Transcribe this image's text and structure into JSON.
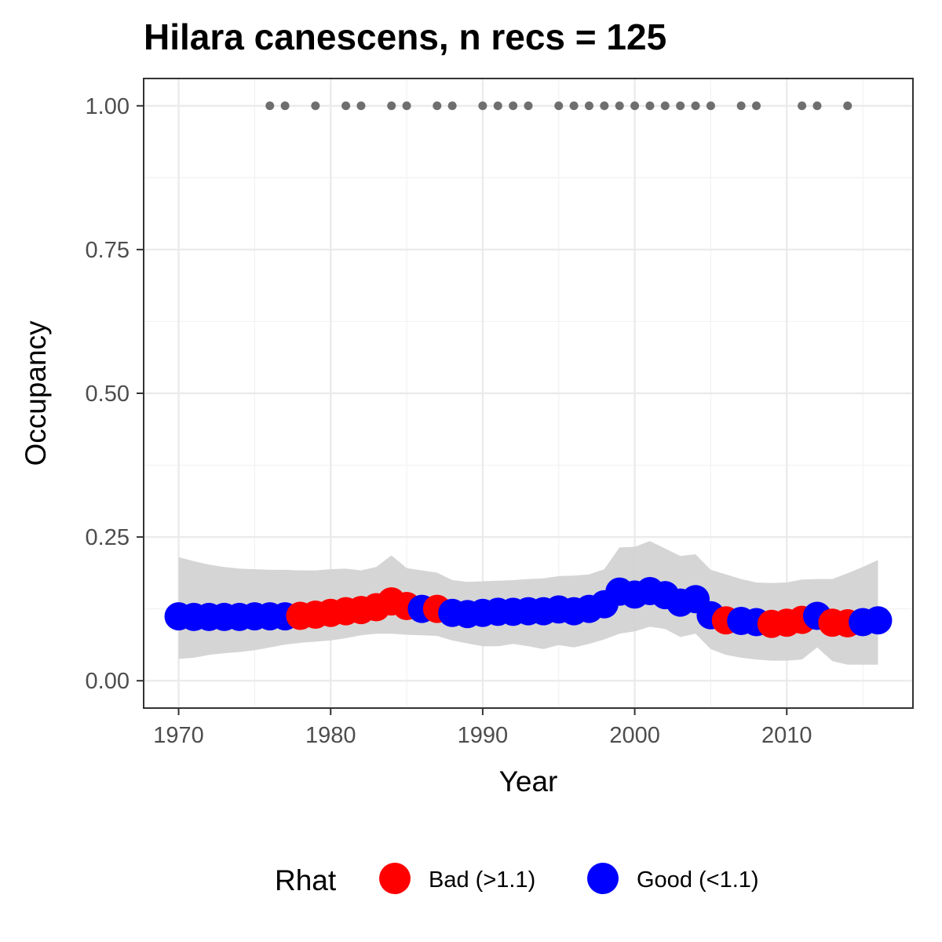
{
  "chart_data": {
    "type": "line",
    "title": "Hilara canescens, n recs = 125",
    "xlabel": "Year",
    "ylabel": "Occupancy",
    "xlim": [
      1967.7,
      2018.3
    ],
    "ylim": [
      -0.0475,
      1.0475
    ],
    "x_ticks": [
      1970,
      1980,
      1990,
      2000,
      2010
    ],
    "x_tick_labels": [
      "1970",
      "1980",
      "1990",
      "2000",
      "2010"
    ],
    "y_ticks": [
      0,
      0.25,
      0.5,
      0.75,
      1.0
    ],
    "y_tick_labels": [
      "0.00",
      "0.25",
      "0.50",
      "0.75",
      "1.00"
    ],
    "grid": true,
    "legend": {
      "title": "Rhat",
      "position": "bottom",
      "items": [
        {
          "label": "Bad (>1.1)",
          "color": "#ff0000"
        },
        {
          "label": "Good (<1.1)",
          "color": "#0000ff"
        }
      ]
    },
    "colors": {
      "bad": "#ff0000",
      "good": "#0000ff",
      "ribbon": "#d3d3d3",
      "record": "#6e6e6e"
    },
    "years": [
      1970,
      1971,
      1972,
      1973,
      1974,
      1975,
      1976,
      1977,
      1978,
      1979,
      1980,
      1981,
      1982,
      1983,
      1984,
      1985,
      1986,
      1987,
      1988,
      1989,
      1990,
      1991,
      1992,
      1993,
      1994,
      1995,
      1996,
      1997,
      1998,
      1999,
      2000,
      2001,
      2002,
      2003,
      2004,
      2005,
      2006,
      2007,
      2008,
      2009,
      2010,
      2011,
      2012,
      2013,
      2014,
      2015,
      2016
    ],
    "occupancy": [
      0.112,
      0.111,
      0.111,
      0.111,
      0.111,
      0.112,
      0.112,
      0.112,
      0.113,
      0.115,
      0.118,
      0.121,
      0.123,
      0.128,
      0.138,
      0.13,
      0.125,
      0.125,
      0.118,
      0.116,
      0.118,
      0.12,
      0.12,
      0.121,
      0.121,
      0.124,
      0.121,
      0.125,
      0.133,
      0.155,
      0.15,
      0.156,
      0.149,
      0.136,
      0.142,
      0.114,
      0.105,
      0.104,
      0.102,
      0.099,
      0.101,
      0.106,
      0.113,
      0.101,
      0.1,
      0.102,
      0.105
    ],
    "rhat": [
      "good",
      "good",
      "good",
      "good",
      "good",
      "good",
      "good",
      "good",
      "bad",
      "bad",
      "bad",
      "bad",
      "bad",
      "bad",
      "bad",
      "bad",
      "good",
      "bad",
      "good",
      "good",
      "good",
      "good",
      "good",
      "good",
      "good",
      "good",
      "good",
      "good",
      "good",
      "good",
      "good",
      "good",
      "good",
      "good",
      "good",
      "good",
      "bad",
      "good",
      "good",
      "bad",
      "bad",
      "bad",
      "good",
      "bad",
      "bad",
      "good",
      "good"
    ],
    "lower": [
      0.038,
      0.04,
      0.045,
      0.048,
      0.05,
      0.053,
      0.058,
      0.063,
      0.066,
      0.068,
      0.07,
      0.074,
      0.079,
      0.082,
      0.082,
      0.08,
      0.079,
      0.078,
      0.07,
      0.065,
      0.06,
      0.06,
      0.064,
      0.06,
      0.055,
      0.062,
      0.058,
      0.064,
      0.072,
      0.082,
      0.086,
      0.094,
      0.09,
      0.076,
      0.082,
      0.055,
      0.045,
      0.04,
      0.037,
      0.035,
      0.035,
      0.037,
      0.058,
      0.034,
      0.028,
      0.028,
      0.028
    ],
    "upper": [
      0.215,
      0.208,
      0.202,
      0.198,
      0.195,
      0.194,
      0.193,
      0.193,
      0.192,
      0.192,
      0.194,
      0.195,
      0.192,
      0.198,
      0.218,
      0.196,
      0.192,
      0.188,
      0.175,
      0.172,
      0.173,
      0.174,
      0.175,
      0.177,
      0.178,
      0.182,
      0.183,
      0.185,
      0.194,
      0.232,
      0.233,
      0.243,
      0.23,
      0.217,
      0.22,
      0.193,
      0.185,
      0.177,
      0.171,
      0.17,
      0.171,
      0.176,
      0.177,
      0.177,
      0.187,
      0.198,
      0.21
    ],
    "record_years": [
      1976,
      1977,
      1979,
      1981,
      1982,
      1984,
      1985,
      1987,
      1988,
      1990,
      1991,
      1992,
      1993,
      1995,
      1996,
      1997,
      1998,
      1999,
      2000,
      2001,
      2002,
      2003,
      2004,
      2005,
      2007,
      2008,
      2011,
      2012,
      2014
    ],
    "record_value": 1.0
  }
}
